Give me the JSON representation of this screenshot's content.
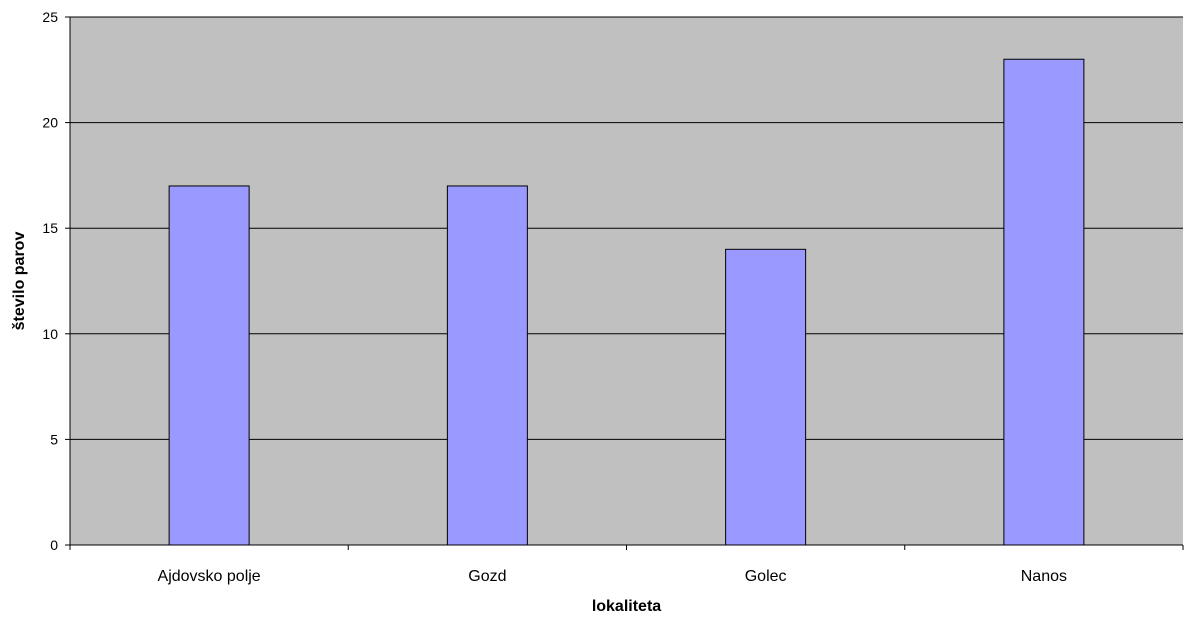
{
  "chart_data": {
    "type": "bar",
    "categories": [
      "Ajdovsko polje",
      "Gozd",
      "Golec",
      "Nanos"
    ],
    "values": [
      17,
      17,
      14,
      23
    ],
    "title": "",
    "xlabel": "lokaliteta",
    "ylabel": "število parov",
    "ylim": [
      0,
      25
    ],
    "yticks": [
      0,
      5,
      10,
      15,
      20,
      25
    ],
    "grid": true,
    "legend": "none",
    "colors": {
      "plot_background": "#c0c0c0",
      "bar_fill": "#9999ff",
      "bar_stroke": "#000000",
      "gridline": "#000000"
    }
  }
}
